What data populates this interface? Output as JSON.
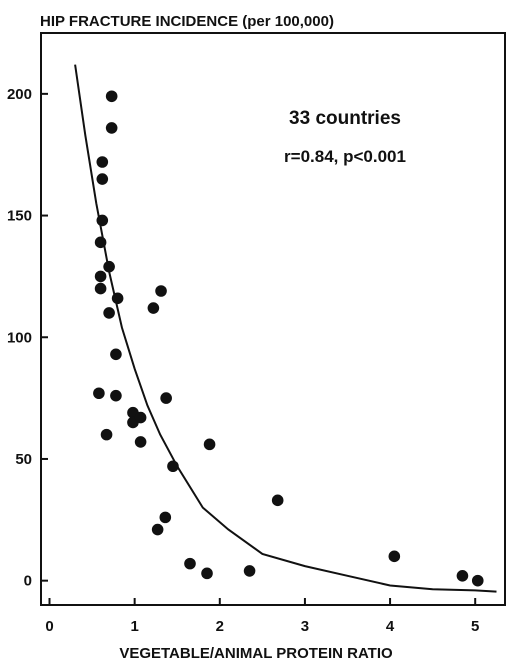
{
  "chart_data": {
    "type": "scatter",
    "title": "HIP FRACTURE INCIDENCE (per 100,000)",
    "xlabel": "VEGETABLE/ANIMAL PROTEIN RATIO",
    "ylabel": "",
    "annotation_count": "33 countries",
    "annotation_stats": "r=0.84, p<0.001",
    "xlim": [
      -0.1,
      5.35
    ],
    "ylim": [
      -10,
      225
    ],
    "x_ticks": [
      0,
      1,
      2,
      3,
      4,
      5
    ],
    "y_ticks": [
      0,
      50,
      100,
      150,
      200
    ],
    "grid": false,
    "series": [
      {
        "type": "scatter",
        "points": [
          {
            "x": 0.73,
            "y": 199
          },
          {
            "x": 0.73,
            "y": 186
          },
          {
            "x": 0.62,
            "y": 172
          },
          {
            "x": 0.62,
            "y": 165
          },
          {
            "x": 0.62,
            "y": 148
          },
          {
            "x": 0.6,
            "y": 139
          },
          {
            "x": 0.7,
            "y": 129
          },
          {
            "x": 0.6,
            "y": 125
          },
          {
            "x": 0.6,
            "y": 120
          },
          {
            "x": 0.8,
            "y": 116
          },
          {
            "x": 0.7,
            "y": 110
          },
          {
            "x": 1.22,
            "y": 112
          },
          {
            "x": 1.31,
            "y": 119
          },
          {
            "x": 0.78,
            "y": 93
          },
          {
            "x": 0.58,
            "y": 77
          },
          {
            "x": 0.78,
            "y": 76
          },
          {
            "x": 1.37,
            "y": 75
          },
          {
            "x": 0.98,
            "y": 69
          },
          {
            "x": 0.98,
            "y": 65
          },
          {
            "x": 1.07,
            "y": 67
          },
          {
            "x": 0.67,
            "y": 60
          },
          {
            "x": 1.07,
            "y": 57
          },
          {
            "x": 1.45,
            "y": 47
          },
          {
            "x": 1.88,
            "y": 56
          },
          {
            "x": 2.68,
            "y": 33
          },
          {
            "x": 1.36,
            "y": 26
          },
          {
            "x": 1.27,
            "y": 21
          },
          {
            "x": 1.65,
            "y": 7
          },
          {
            "x": 1.85,
            "y": 3
          },
          {
            "x": 2.35,
            "y": 4
          },
          {
            "x": 4.05,
            "y": 10
          },
          {
            "x": 4.85,
            "y": 2
          },
          {
            "x": 5.03,
            "y": 0
          }
        ]
      },
      {
        "type": "line",
        "points": [
          {
            "x": 0.3,
            "y": 212
          },
          {
            "x": 0.42,
            "y": 183
          },
          {
            "x": 0.55,
            "y": 155
          },
          {
            "x": 0.7,
            "y": 127
          },
          {
            "x": 0.85,
            "y": 104
          },
          {
            "x": 1.0,
            "y": 87
          },
          {
            "x": 1.15,
            "y": 72
          },
          {
            "x": 1.3,
            "y": 60
          },
          {
            "x": 1.5,
            "y": 47
          },
          {
            "x": 1.8,
            "y": 30
          },
          {
            "x": 2.1,
            "y": 21
          },
          {
            "x": 2.5,
            "y": 11
          },
          {
            "x": 3.0,
            "y": 6
          },
          {
            "x": 3.5,
            "y": 2
          },
          {
            "x": 4.0,
            "y": -2
          },
          {
            "x": 4.5,
            "y": -3.5
          },
          {
            "x": 5.0,
            "y": -4
          },
          {
            "x": 5.25,
            "y": -4.5
          }
        ]
      }
    ]
  }
}
